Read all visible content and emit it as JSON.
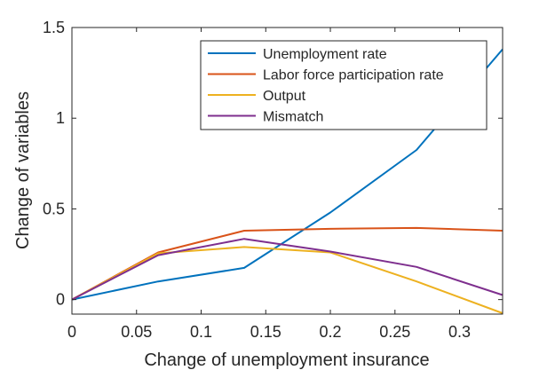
{
  "chart_data": {
    "type": "line",
    "xlabel": "Change of unemployment insurance",
    "ylabel": "Change of variables",
    "xlim": [
      0,
      0.3333
    ],
    "ylim": [
      -0.08,
      1.5
    ],
    "xticks": [
      0,
      0.05,
      0.1,
      0.15,
      0.2,
      0.25,
      0.3
    ],
    "xtick_labels": [
      "0",
      "0.05",
      "0.1",
      "0.15",
      "0.2",
      "0.25",
      "0.3"
    ],
    "yticks": [
      0,
      0.5,
      1,
      1.5
    ],
    "ytick_labels": [
      "0",
      "0.5",
      "1",
      "1.5"
    ],
    "grid": false,
    "legend_position": "top-right",
    "x": [
      0,
      0.0667,
      0.1333,
      0.2,
      0.2667,
      0.3333
    ],
    "series": [
      {
        "name": "Unemployment rate",
        "color": "#0072BD",
        "values": [
          0,
          0.1,
          0.175,
          0.48,
          0.825,
          1.38
        ]
      },
      {
        "name": "Labor force participation rate",
        "color": "#D95319",
        "values": [
          0,
          0.26,
          0.38,
          0.39,
          0.395,
          0.38
        ]
      },
      {
        "name": "Output",
        "color": "#EDB120",
        "values": [
          0,
          0.255,
          0.29,
          0.26,
          0.1,
          -0.075
        ]
      },
      {
        "name": "Mismatch",
        "color": "#7E2F8E",
        "values": [
          0,
          0.245,
          0.335,
          0.265,
          0.18,
          0.025
        ]
      }
    ]
  }
}
